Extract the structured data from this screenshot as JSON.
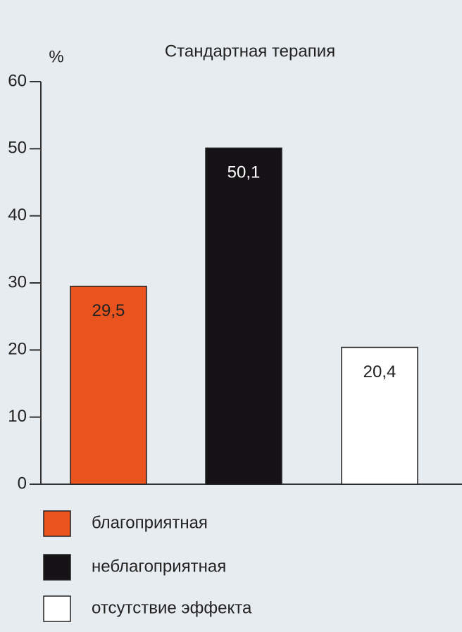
{
  "chart_data": {
    "type": "bar",
    "title": "Стандартная терапия",
    "y_label": "%",
    "categories": [
      "благоприятная",
      "неблагоприятная",
      "отсутствие эффекта"
    ],
    "values": [
      29.5,
      50.1,
      20.4
    ],
    "value_labels": [
      "29,5",
      "50,1",
      "20,4"
    ],
    "colors": [
      "#e8531e",
      "#141214",
      "#ffffff"
    ],
    "ylim": [
      0,
      60
    ],
    "yticks": [
      0,
      10,
      20,
      30,
      40,
      50,
      60
    ],
    "grid": false,
    "legend": "bottom"
  }
}
